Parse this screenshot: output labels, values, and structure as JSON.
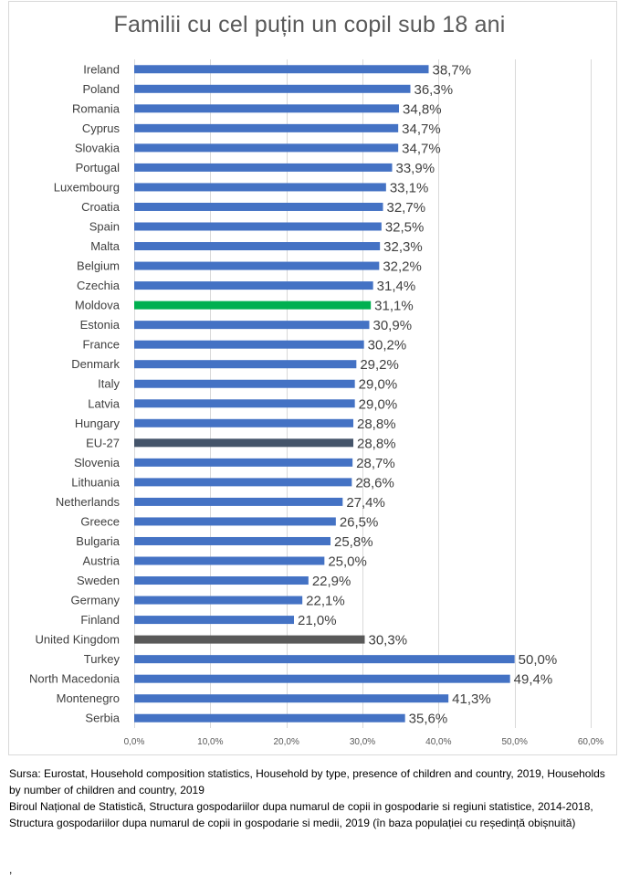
{
  "chart_data": {
    "type": "bar",
    "orientation": "horizontal",
    "title": "Familii cu cel puțin un copil sub 18 ani",
    "xlabel": "",
    "ylabel": "",
    "xlim": [
      0,
      60
    ],
    "x_ticks": [
      "0,0%",
      "10,0%",
      "20,0%",
      "30,0%",
      "40,0%",
      "50,0%",
      "60,0%"
    ],
    "x_tick_values": [
      0,
      10,
      20,
      30,
      40,
      50,
      60
    ],
    "grid": true,
    "legend": "none",
    "categories": [
      "Ireland",
      "Poland",
      "Romania",
      "Cyprus",
      "Slovakia",
      "Portugal",
      "Luxembourg",
      "Croatia",
      "Spain",
      "Malta",
      "Belgium",
      "Czechia",
      "Moldova",
      "Estonia",
      "France",
      "Denmark",
      "Italy",
      "Latvia",
      "Hungary",
      "EU-27",
      "Slovenia",
      "Lithuania",
      "Netherlands",
      "Greece",
      "Bulgaria",
      "Austria",
      "Sweden",
      "Germany",
      "Finland",
      "United Kingdom",
      "Turkey",
      "North Macedonia",
      "Montenegro",
      "Serbia"
    ],
    "values": [
      38.7,
      36.3,
      34.8,
      34.7,
      34.7,
      33.9,
      33.1,
      32.7,
      32.5,
      32.3,
      32.2,
      31.4,
      31.1,
      30.9,
      30.2,
      29.2,
      29.0,
      29.0,
      28.8,
      28.8,
      28.7,
      28.6,
      27.4,
      26.5,
      25.8,
      25.0,
      22.9,
      22.1,
      21.0,
      30.3,
      50.0,
      49.4,
      41.3,
      35.6
    ],
    "value_labels": [
      "38,7%",
      "36,3%",
      "34,8%",
      "34,7%",
      "34,7%",
      "33,9%",
      "33,1%",
      "32,7%",
      "32,5%",
      "32,3%",
      "32,2%",
      "31,4%",
      "31,1%",
      "30,9%",
      "30,2%",
      "29,2%",
      "29,0%",
      "29,0%",
      "28,8%",
      "28,8%",
      "28,7%",
      "28,6%",
      "27,4%",
      "26,5%",
      "25,8%",
      "25,0%",
      "22,9%",
      "22,1%",
      "21,0%",
      "30,3%",
      "50,0%",
      "49,4%",
      "41,3%",
      "35,6%"
    ],
    "unit": "%",
    "colors": {
      "default": "#4472C4",
      "highlights": {
        "Moldova": "#00B050",
        "EU-27": "#44546A",
        "United Kingdom": "#595959"
      }
    }
  },
  "source_note": {
    "lines": [
      "Sursa: Eurostat, Household composition statistics, Household by type, presence of children and country, 2019,  Households by number of children and country, 2019",
      "Biroul Național de Statistică, Structura gospodariilor dupa numarul de copii in gospodarie si regiuni statistice, 2014-2018,  Structura gospodariilor dupa numarul de copii in gospodarie si medii, 2019 (în baza populației cu reședință obișnuită)"
    ],
    "trailing": ","
  }
}
